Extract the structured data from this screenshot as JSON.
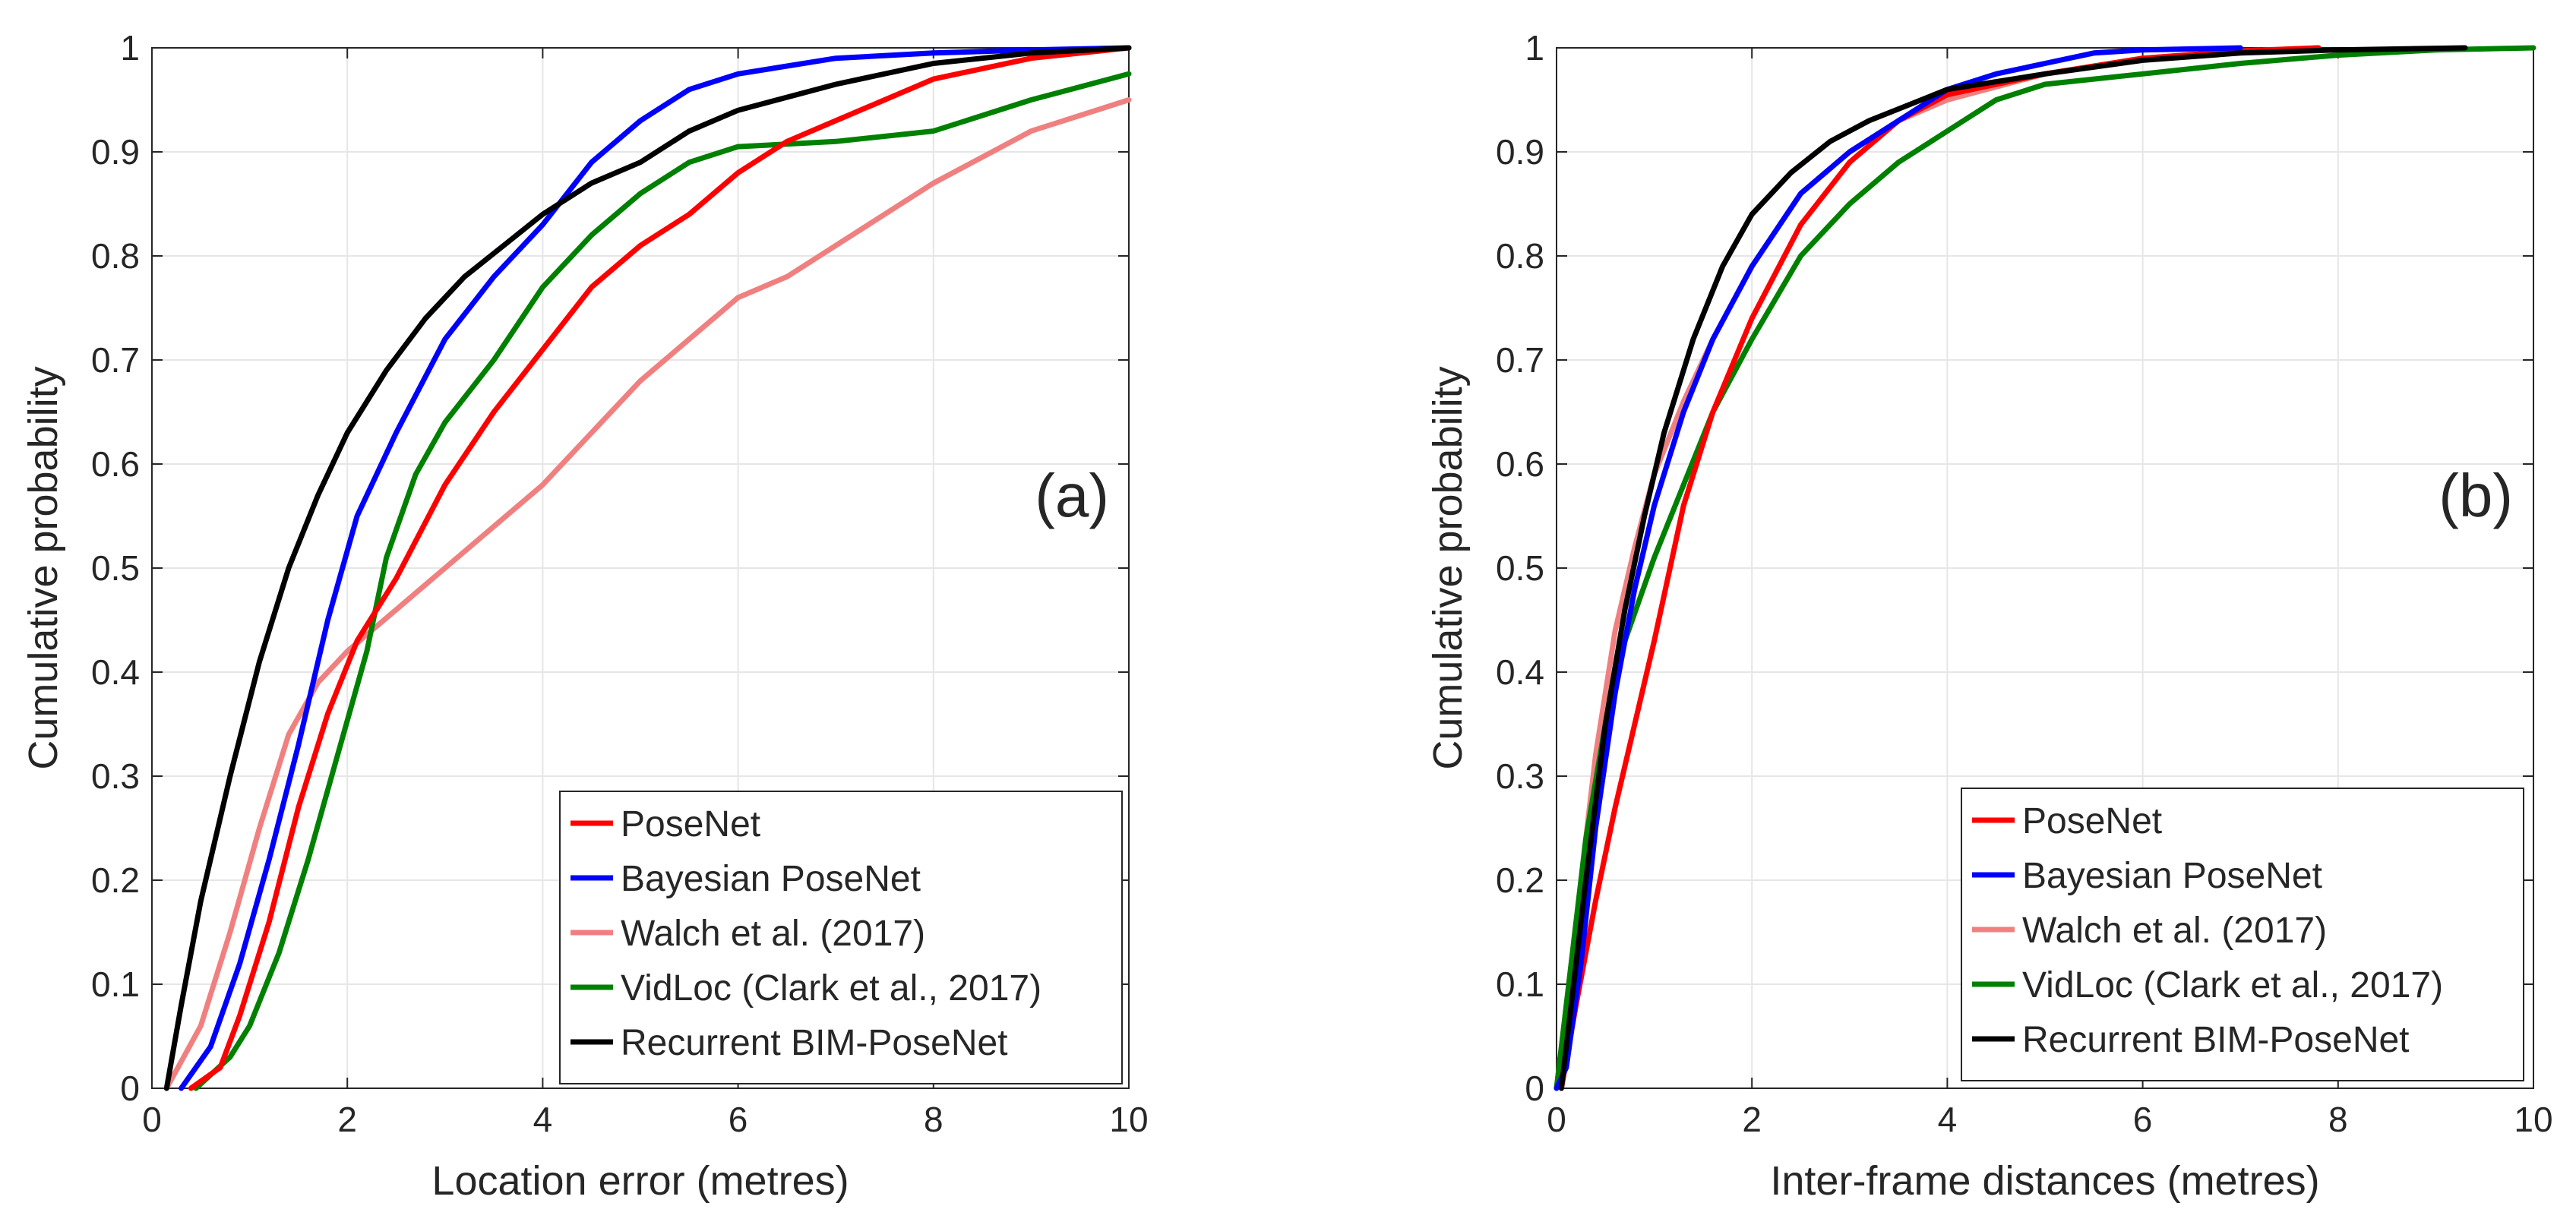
{
  "chart_data": [
    {
      "type": "line",
      "panel_label": "(a)",
      "xlabel": "Location error (metres)",
      "ylabel": "Cumulative probability",
      "xlim": [
        0,
        10
      ],
      "ylim": [
        0,
        1
      ],
      "xticks": [
        0,
        2,
        4,
        6,
        8,
        10
      ],
      "yticks": [
        0,
        0.1,
        0.2,
        0.3,
        0.4,
        0.5,
        0.6,
        0.7,
        0.8,
        0.9,
        1
      ],
      "grid": true,
      "legend_position": "bottom-right",
      "series": [
        {
          "name": "PoseNet",
          "color": "#ff0000",
          "x": [
            0.4,
            0.7,
            0.9,
            1.2,
            1.5,
            1.8,
            2.1,
            2.5,
            3.0,
            3.5,
            4.0,
            4.5,
            5.0,
            5.5,
            6.0,
            6.5,
            7.0,
            7.5,
            8.0,
            9.0,
            10.0
          ],
          "y": [
            0,
            0.02,
            0.07,
            0.16,
            0.27,
            0.36,
            0.43,
            0.49,
            0.58,
            0.65,
            0.71,
            0.77,
            0.81,
            0.84,
            0.88,
            0.91,
            0.93,
            0.95,
            0.97,
            0.99,
            1.0
          ]
        },
        {
          "name": "Bayesian PoseNet",
          "color": "#0000ff",
          "x": [
            0.3,
            0.6,
            0.9,
            1.2,
            1.5,
            1.8,
            2.1,
            2.5,
            3.0,
            3.5,
            4.0,
            4.5,
            5.0,
            5.5,
            6.0,
            7.0,
            8.0,
            9.0,
            10.0
          ],
          "y": [
            0,
            0.04,
            0.12,
            0.22,
            0.33,
            0.45,
            0.55,
            0.63,
            0.72,
            0.78,
            0.83,
            0.89,
            0.93,
            0.96,
            0.975,
            0.99,
            0.995,
            0.998,
            1.0
          ]
        },
        {
          "name": "Walch et al. (2017)",
          "color": "#f08080",
          "x": [
            0.15,
            0.5,
            0.8,
            1.1,
            1.4,
            1.7,
            2.0,
            2.5,
            3.0,
            3.5,
            4.0,
            4.5,
            5.0,
            5.5,
            6.0,
            6.5,
            7.0,
            7.5,
            8.0,
            9.0,
            10.0
          ],
          "y": [
            0,
            0.06,
            0.15,
            0.25,
            0.34,
            0.39,
            0.42,
            0.46,
            0.5,
            0.54,
            0.58,
            0.63,
            0.68,
            0.72,
            0.76,
            0.78,
            0.81,
            0.84,
            0.87,
            0.92,
            0.95
          ]
        },
        {
          "name": "VidLoc (Clark et al., 2017)",
          "color": "#008000",
          "x": [
            0.45,
            0.8,
            1.0,
            1.3,
            1.6,
            1.9,
            2.2,
            2.4,
            2.7,
            3.0,
            3.5,
            4.0,
            4.5,
            5.0,
            5.5,
            6.0,
            7.0,
            8.0,
            9.0,
            10.0
          ],
          "y": [
            0,
            0.03,
            0.06,
            0.13,
            0.22,
            0.32,
            0.42,
            0.51,
            0.59,
            0.64,
            0.7,
            0.77,
            0.82,
            0.86,
            0.89,
            0.905,
            0.91,
            0.92,
            0.95,
            0.975
          ]
        },
        {
          "name": "Recurrent BIM-PoseNet",
          "color": "#000000",
          "x": [
            0.15,
            0.3,
            0.5,
            0.8,
            1.1,
            1.4,
            1.7,
            2.0,
            2.4,
            2.8,
            3.2,
            3.6,
            4.0,
            4.5,
            5.0,
            5.5,
            6.0,
            7.0,
            8.0,
            9.0,
            10.0
          ],
          "y": [
            0,
            0.08,
            0.18,
            0.3,
            0.41,
            0.5,
            0.57,
            0.63,
            0.69,
            0.74,
            0.78,
            0.81,
            0.84,
            0.87,
            0.89,
            0.92,
            0.94,
            0.965,
            0.985,
            0.995,
            1.0
          ]
        }
      ]
    },
    {
      "type": "line",
      "panel_label": "(b)",
      "xlabel": "Inter-frame distances (metres)",
      "ylabel": "Cumulative probability",
      "xlim": [
        0,
        10
      ],
      "ylim": [
        0,
        1
      ],
      "xticks": [
        0,
        2,
        4,
        6,
        8,
        10
      ],
      "yticks": [
        0,
        0.1,
        0.2,
        0.3,
        0.4,
        0.5,
        0.6,
        0.7,
        0.8,
        0.9,
        1
      ],
      "grid": true,
      "legend_position": "bottom-right",
      "series": [
        {
          "name": "PoseNet",
          "color": "#ff0000",
          "x": [
            0.05,
            0.2,
            0.4,
            0.6,
            0.8,
            1.0,
            1.3,
            1.6,
            2.0,
            2.5,
            3.0,
            3.5,
            4.0,
            5.0,
            6.0,
            7.0,
            7.8
          ],
          "y": [
            0,
            0.08,
            0.18,
            0.27,
            0.35,
            0.43,
            0.56,
            0.65,
            0.74,
            0.83,
            0.89,
            0.93,
            0.955,
            0.975,
            0.99,
            0.997,
            1.0
          ]
        },
        {
          "name": "Bayesian PoseNet",
          "color": "#0000ff",
          "x": [
            0,
            0.1,
            0.25,
            0.4,
            0.6,
            0.8,
            1.0,
            1.3,
            1.6,
            2.0,
            2.5,
            3.0,
            3.5,
            4.0,
            4.5,
            5.0,
            5.5,
            6.0,
            7.0
          ],
          "y": [
            0,
            0.02,
            0.12,
            0.25,
            0.38,
            0.48,
            0.56,
            0.65,
            0.72,
            0.79,
            0.86,
            0.9,
            0.93,
            0.96,
            0.975,
            0.985,
            0.995,
            0.998,
            1.0
          ]
        },
        {
          "name": "Walch et al. (2017)",
          "color": "#f08080",
          "x": [
            0,
            0.1,
            0.25,
            0.4,
            0.6,
            0.8,
            1.0,
            1.3,
            1.6,
            2.0,
            2.5,
            3.0,
            3.5,
            4.0,
            5.0,
            6.0,
            7.0,
            7.8
          ],
          "y": [
            0,
            0.08,
            0.2,
            0.32,
            0.44,
            0.52,
            0.59,
            0.66,
            0.72,
            0.79,
            0.86,
            0.9,
            0.93,
            0.95,
            0.975,
            0.99,
            0.997,
            1.0
          ]
        },
        {
          "name": "VidLoc (Clark et al., 2017)",
          "color": "#008000",
          "x": [
            0,
            0.15,
            0.3,
            0.5,
            0.7,
            1.0,
            1.3,
            1.6,
            2.0,
            2.5,
            3.0,
            3.5,
            4.0,
            4.5,
            5.0,
            6.0,
            7.0,
            8.0,
            9.0,
            10.0
          ],
          "y": [
            0,
            0.12,
            0.24,
            0.35,
            0.43,
            0.51,
            0.58,
            0.65,
            0.72,
            0.8,
            0.85,
            0.89,
            0.92,
            0.95,
            0.965,
            0.975,
            0.985,
            0.993,
            0.998,
            1.0
          ]
        },
        {
          "name": "Recurrent BIM-PoseNet",
          "color": "#000000",
          "x": [
            0.05,
            0.15,
            0.3,
            0.5,
            0.7,
            0.9,
            1.1,
            1.4,
            1.7,
            2.0,
            2.4,
            2.8,
            3.2,
            3.6,
            4.0,
            5.0,
            6.0,
            7.0,
            8.0,
            9.3
          ],
          "y": [
            0,
            0.08,
            0.2,
            0.35,
            0.46,
            0.55,
            0.63,
            0.72,
            0.79,
            0.84,
            0.88,
            0.91,
            0.93,
            0.945,
            0.96,
            0.975,
            0.988,
            0.995,
            0.998,
            1.0
          ]
        }
      ]
    }
  ]
}
